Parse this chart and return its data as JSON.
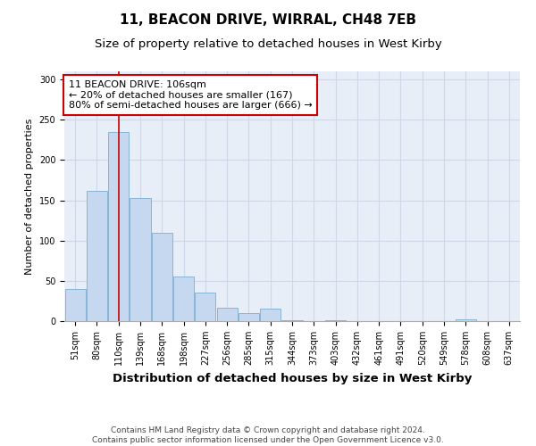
{
  "title": "11, BEACON DRIVE, WIRRAL, CH48 7EB",
  "subtitle": "Size of property relative to detached houses in West Kirby",
  "xlabel": "Distribution of detached houses by size in West Kirby",
  "ylabel": "Number of detached properties",
  "bar_labels": [
    "51sqm",
    "80sqm",
    "110sqm",
    "139sqm",
    "168sqm",
    "198sqm",
    "227sqm",
    "256sqm",
    "285sqm",
    "315sqm",
    "344sqm",
    "373sqm",
    "403sqm",
    "432sqm",
    "461sqm",
    "491sqm",
    "520sqm",
    "549sqm",
    "578sqm",
    "608sqm",
    "637sqm"
  ],
  "bar_values": [
    40,
    162,
    235,
    153,
    110,
    55,
    35,
    17,
    10,
    15,
    1,
    0,
    1,
    0,
    0,
    0,
    0,
    0,
    2,
    0,
    0
  ],
  "bar_color": "#c5d8f0",
  "bar_edge_color": "#7aadd4",
  "highlight_index": 2,
  "highlight_line_color": "#cc0000",
  "annotation_text": "11 BEACON DRIVE: 106sqm\n← 20% of detached houses are smaller (167)\n80% of semi-detached houses are larger (666) →",
  "annotation_box_color": "#ffffff",
  "annotation_box_edge": "#cc0000",
  "ylim": [
    0,
    310
  ],
  "yticks": [
    0,
    50,
    100,
    150,
    200,
    250,
    300
  ],
  "grid_color": "#d0d8e8",
  "bg_color": "#e8eef8",
  "footnote": "Contains HM Land Registry data © Crown copyright and database right 2024.\nContains public sector information licensed under the Open Government Licence v3.0.",
  "title_fontsize": 11,
  "subtitle_fontsize": 9.5,
  "xlabel_fontsize": 9.5,
  "ylabel_fontsize": 8,
  "tick_fontsize": 7,
  "annotation_fontsize": 8,
  "footnote_fontsize": 6.5
}
